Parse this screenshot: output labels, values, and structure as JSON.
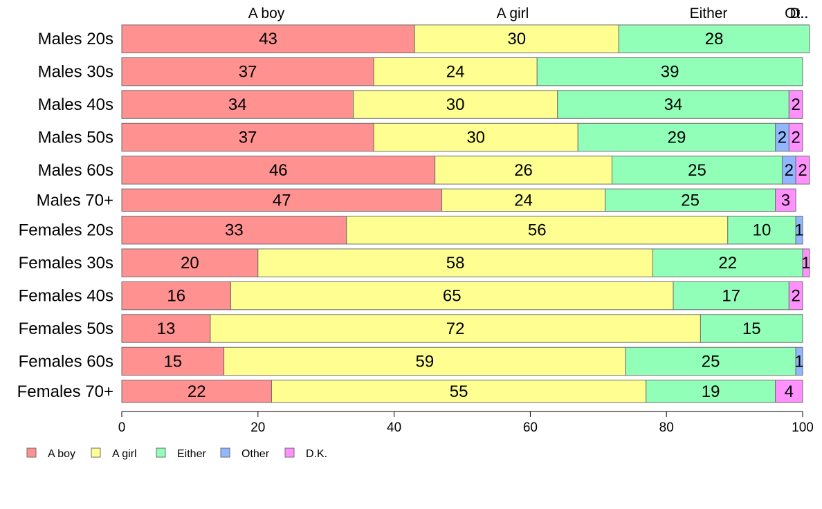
{
  "chart_data": {
    "type": "bar",
    "orientation": "horizontal",
    "stacked": true,
    "categories": [
      "Males 20s",
      "Males 30s",
      "Males 40s",
      "Males 50s",
      "Males 60s",
      "Males 70+",
      "Females 20s",
      "Females 30s",
      "Females 40s",
      "Females 50s",
      "Females 60s",
      "Females 70+"
    ],
    "series": [
      {
        "name": "A boy",
        "color": "#ff9191",
        "values": [
          43,
          37,
          34,
          37,
          46,
          47,
          33,
          20,
          16,
          13,
          15,
          22
        ]
      },
      {
        "name": "A girl",
        "color": "#ffff91",
        "values": [
          30,
          24,
          30,
          30,
          26,
          24,
          56,
          58,
          65,
          72,
          59,
          55
        ]
      },
      {
        "name": "Either",
        "color": "#91ffb7",
        "values": [
          28,
          39,
          34,
          29,
          25,
          25,
          10,
          22,
          17,
          15,
          25,
          19
        ]
      },
      {
        "name": "Other",
        "color": "#91b7ff",
        "values": [
          0,
          0,
          0,
          2,
          2,
          0,
          1,
          0,
          0,
          0,
          1,
          0
        ]
      },
      {
        "name": "D.K.",
        "color": "#ff91ff",
        "values": [
          0,
          0,
          2,
          2,
          2,
          3,
          0,
          1,
          2,
          0,
          0,
          4
        ]
      }
    ],
    "bar_weights": [
      1,
      1,
      1,
      1,
      1,
      0.8,
      1,
      1,
      1,
      1,
      1,
      0.8
    ],
    "top_labels": [
      "A boy",
      "A girl",
      "Either",
      "Ot..",
      "D.."
    ],
    "xlim": [
      0,
      100
    ],
    "xticks": [
      0,
      20,
      40,
      60,
      80,
      100
    ],
    "legend_position": "bottom-left",
    "grid": false,
    "title": "",
    "xlabel": "",
    "ylabel": ""
  }
}
